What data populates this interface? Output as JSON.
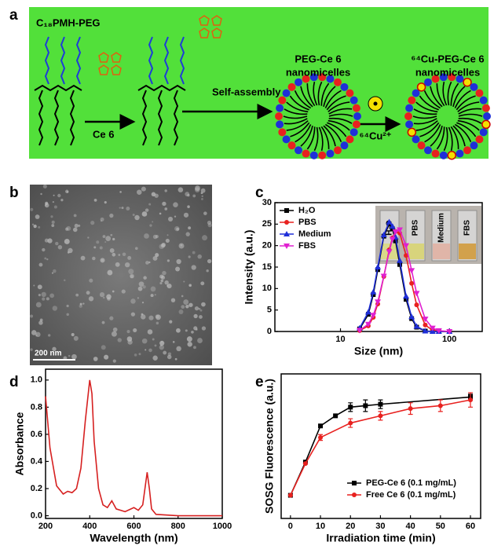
{
  "panel_labels": [
    "a",
    "b",
    "c",
    "d",
    "e"
  ],
  "scheme": {
    "polymer": "C₁₈PMH-PEG",
    "reagent": "Ce 6",
    "step": "Self-assembly",
    "micelle": [
      "PEG-Ce 6",
      "nanomicelles"
    ],
    "labeled": [
      "⁶⁴Cu-PEG-Ce 6",
      "nanomicelles"
    ],
    "isotope": "⁶⁴Cu²⁺"
  },
  "tem": {
    "scale_bar": "200 nm"
  },
  "insert_labels": [
    "H₂O",
    "PBS",
    "Medium",
    "FBS"
  ],
  "chart_data": [
    {
      "type": "line",
      "x_label": "Size (nm)",
      "y_label": "Intensity (a.u.)",
      "log_x": true,
      "xlim": [
        2.5,
        200
      ],
      "xticks": [
        10,
        100
      ],
      "ylim": [
        0,
        30
      ],
      "yticks": [
        0,
        5,
        10,
        15,
        20,
        25,
        30
      ],
      "legend": "upper left",
      "x": [
        15,
        18,
        20,
        22,
        25,
        28,
        30,
        32,
        35,
        40,
        45,
        50,
        60,
        70,
        80,
        100
      ],
      "series": [
        {
          "name": "H₂O",
          "color": "#000000",
          "marker": "square",
          "values": [
            0.6,
            4.0,
            8.6,
            14.4,
            22.2,
            25,
            23.9,
            21.1,
            15.6,
            7.5,
            3.0,
            1.0,
            0.1,
            0,
            0,
            0
          ]
        },
        {
          "name": "PBS",
          "color": "#e8211f",
          "marker": "circle",
          "values": [
            0.2,
            1.3,
            3.3,
            6.4,
            12.8,
            19.0,
            21.8,
            23.3,
            22.9,
            17.7,
            11.2,
            6.2,
            1.5,
            0.3,
            0.1,
            0
          ]
        },
        {
          "name": "Medium",
          "color": "#1f2fd8",
          "marker": "triangle-up",
          "values": [
            0.8,
            4.5,
            9.2,
            15,
            22.5,
            25.5,
            24.5,
            22,
            16.5,
            8.2,
            3.4,
            1.2,
            0.1,
            0,
            0,
            0
          ]
        },
        {
          "name": "FBS",
          "color": "#e020d0",
          "marker": "triangle-down",
          "values": [
            0.3,
            1.7,
            3.8,
            6.9,
            12.9,
            18.6,
            21.5,
            23.2,
            23.7,
            20.0,
            14.2,
            8.9,
            2.9,
            0.8,
            0.2,
            0
          ]
        }
      ]
    },
    {
      "type": "line",
      "x_label": "Wavelength (nm)",
      "y_label": "Absorbance",
      "xlim": [
        200,
        1000
      ],
      "xticks": [
        200,
        400,
        600,
        800,
        1000
      ],
      "ylim": [
        -0.02,
        1.08
      ],
      "yticks": [
        {
          "value": 0,
          "label": "0.0"
        },
        0.2,
        0.4,
        0.6,
        0.8,
        {
          "value": 1,
          "label": "1.0"
        }
      ],
      "color": "#d62020",
      "x": [
        200,
        220,
        250,
        280,
        300,
        320,
        340,
        360,
        380,
        400,
        410,
        420,
        440,
        460,
        480,
        500,
        520,
        540,
        560,
        600,
        620,
        640,
        660,
        670,
        680,
        700,
        800,
        1000
      ],
      "values": [
        0.88,
        0.5,
        0.22,
        0.16,
        0.18,
        0.17,
        0.2,
        0.35,
        0.7,
        1.0,
        0.9,
        0.55,
        0.2,
        0.08,
        0.06,
        0.11,
        0.05,
        0.04,
        0.03,
        0.06,
        0.04,
        0.08,
        0.32,
        0.2,
        0.05,
        0.01,
        0,
        0
      ]
    },
    {
      "type": "line",
      "x_label": "Irradiation time (min)",
      "y_label": "SOSG Fluorescence (a.u.)",
      "xlim": [
        -3.1,
        63.4
      ],
      "xticks": [
        0,
        10,
        20,
        30,
        40,
        50,
        60
      ],
      "ylim": [
        0,
        100
      ],
      "legend": "lower right",
      "series": [
        {
          "name": "PEG-Ce 6 (0.1 mg/mL)",
          "color": "#000000",
          "marker": "square",
          "x": [
            0,
            5,
            10,
            15,
            20,
            25,
            30,
            60
          ],
          "values": [
            16,
            39,
            64,
            71,
            77,
            78,
            79,
            84
          ],
          "errors": [
            0,
            0,
            0,
            0,
            3,
            4,
            3,
            2
          ]
        },
        {
          "name": "Free Ce 6 (0.1 mg/mL)",
          "color": "#e8211f",
          "marker": "circle",
          "x": [
            0,
            5,
            10,
            20,
            30,
            40,
            50,
            60
          ],
          "values": [
            16,
            38,
            56,
            66,
            71,
            76,
            78,
            82
          ],
          "errors": [
            0,
            0,
            2,
            3,
            3,
            4,
            4,
            5
          ]
        }
      ]
    }
  ]
}
